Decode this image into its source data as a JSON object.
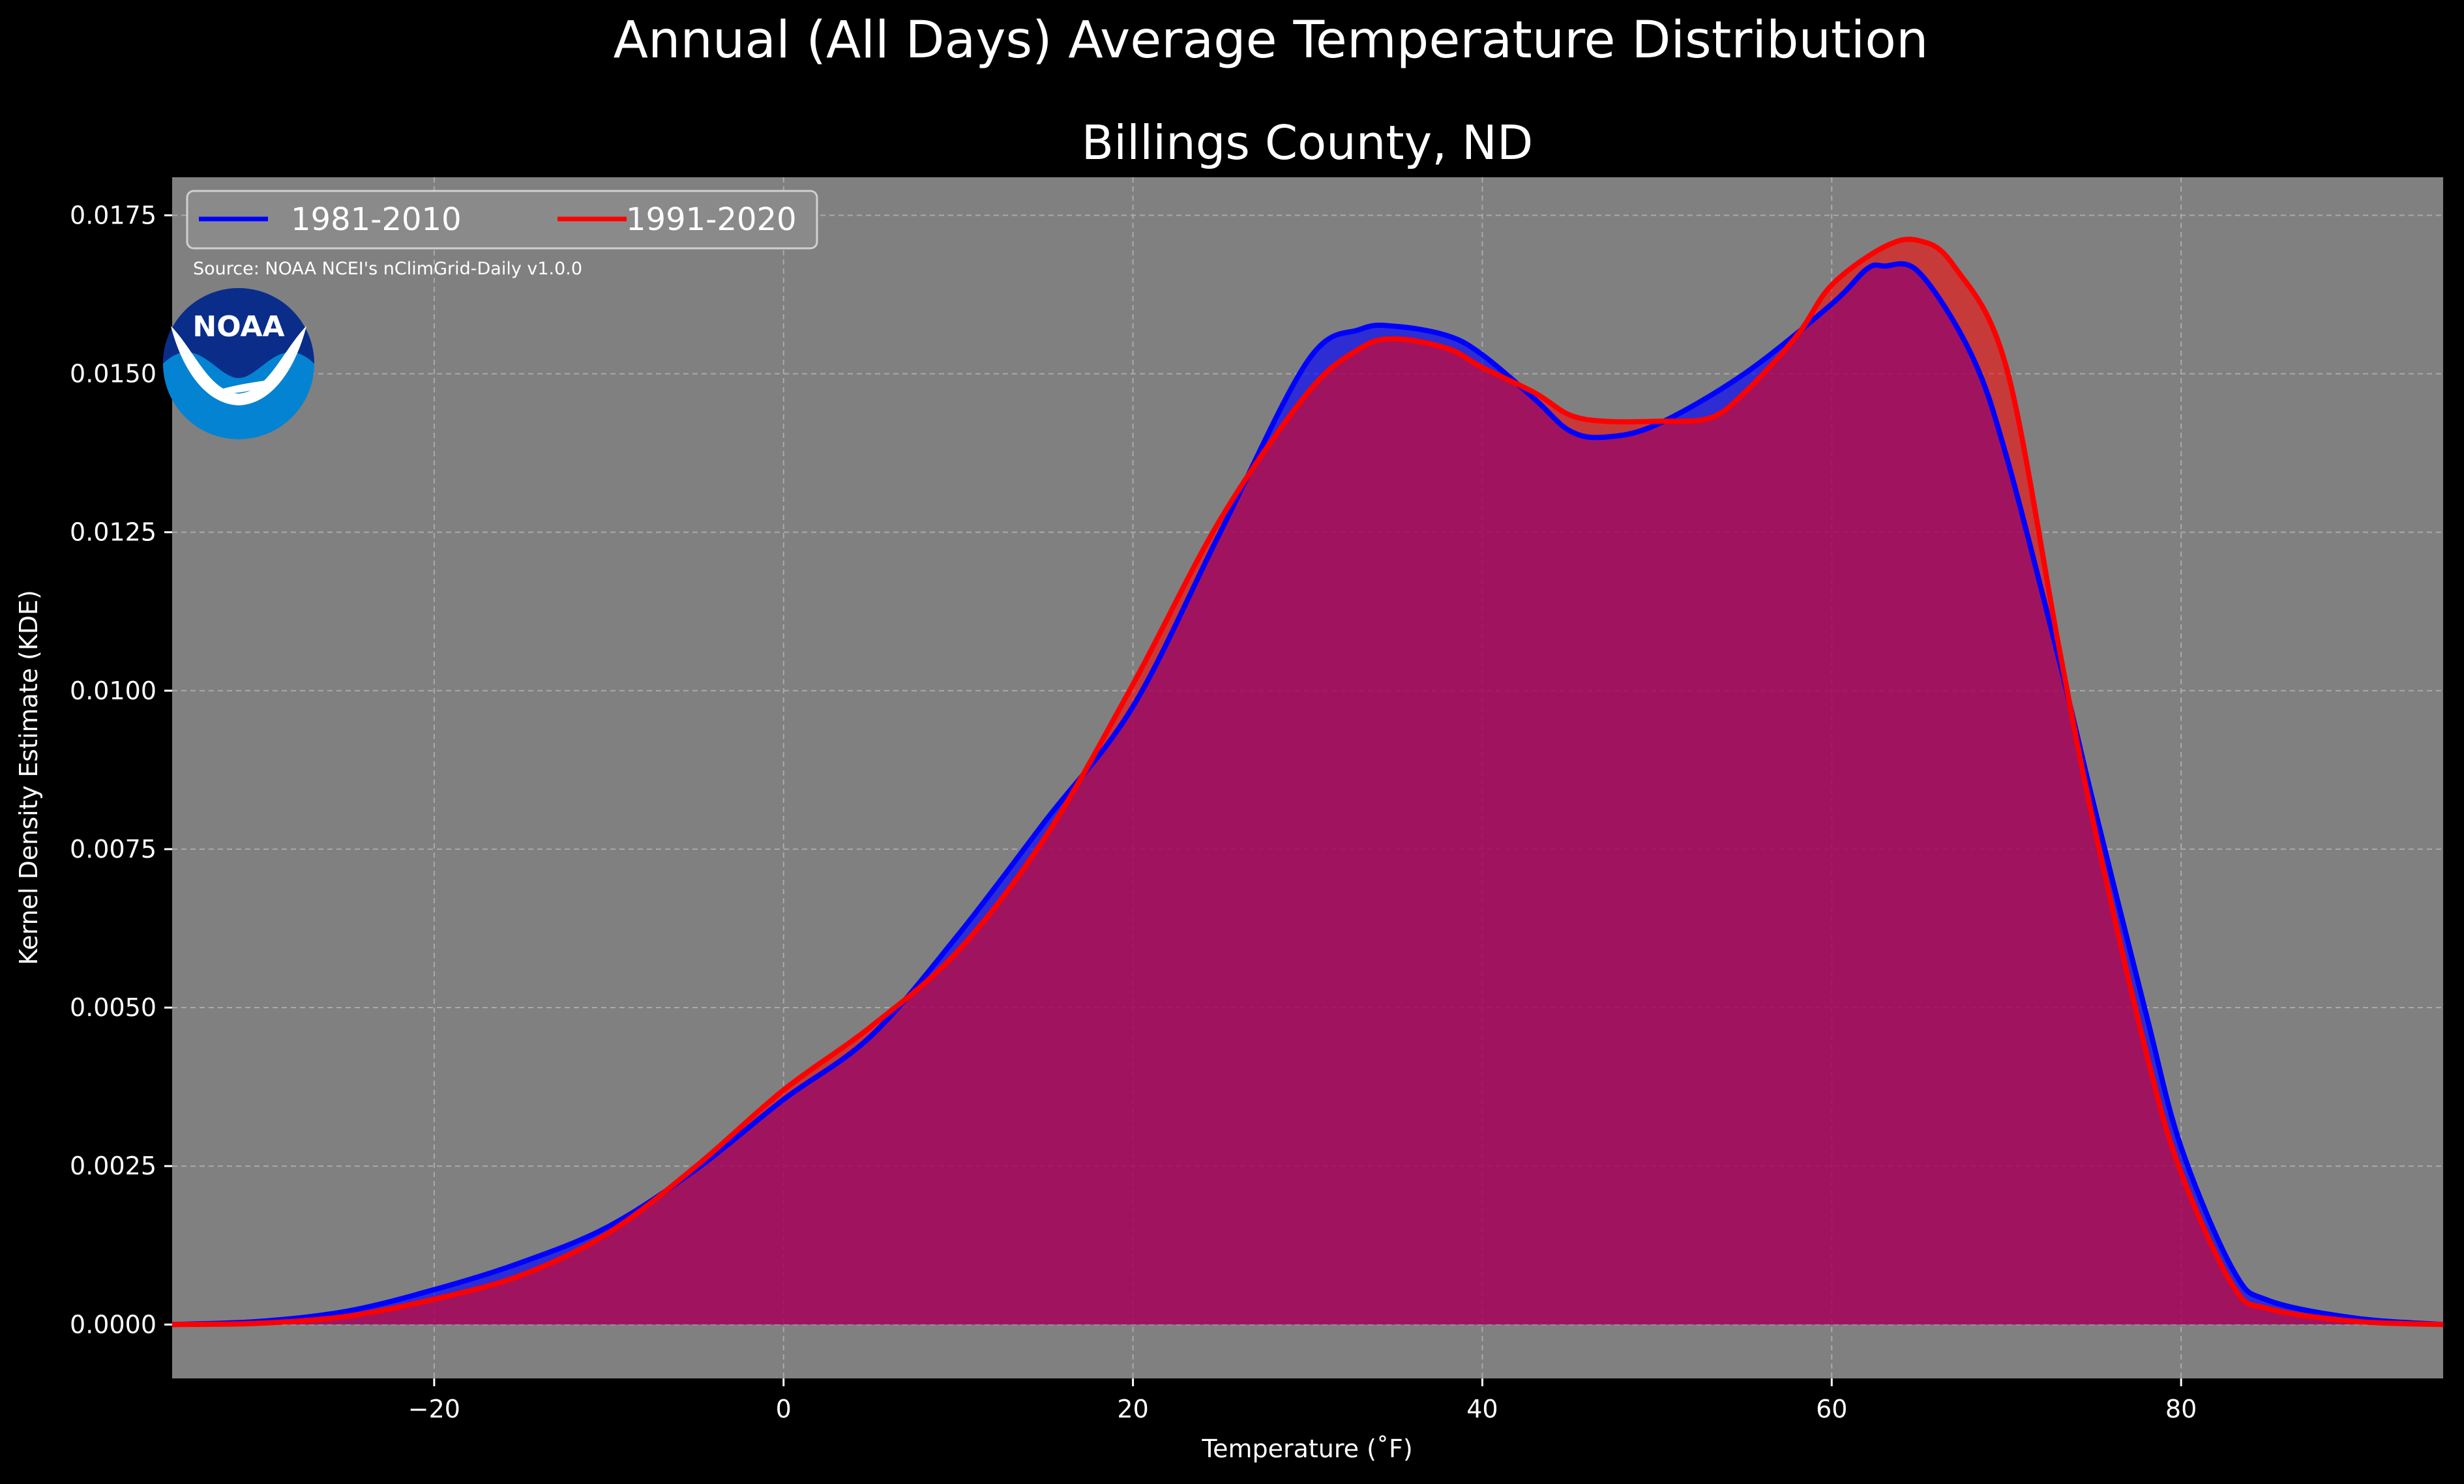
{
  "title": "Annual (All Days) Average Temperature Distribution",
  "subtitle": "Billings County, ND",
  "source": "Source: NOAA NCEI's nClimGrid-Daily v1.0.0",
  "logo_text": "NOAA",
  "colors": {
    "background": "#000000",
    "plot_background": "#808080",
    "series_1": "#0000ff",
    "series_2": "#ff0000",
    "overlap_fill": "#9e1f5f",
    "logo_dark": "#0a2d8a",
    "logo_light": "#0483d2"
  },
  "chart_data": {
    "type": "area",
    "xlabel": "Temperature ($^\\circ$F)",
    "xlabel_display": "Temperature (˚F)",
    "ylabel": "Kernel Density Estimate (KDE)",
    "xlim": [
      -35,
      95
    ],
    "ylim": [
      -0.00085,
      0.0181
    ],
    "xticks": [
      -20,
      0,
      20,
      40,
      60,
      80
    ],
    "xtick_labels": [
      "−20",
      "0",
      "20",
      "40",
      "60",
      "80"
    ],
    "yticks": [
      0.0,
      0.0025,
      0.005,
      0.0075,
      0.01,
      0.0125,
      0.015,
      0.0175
    ],
    "ytick_labels": [
      "0.0000",
      "0.0025",
      "0.0050",
      "0.0075",
      "0.0100",
      "0.0125",
      "0.0150",
      "0.0175"
    ],
    "grid": true,
    "legend_position": "top-left",
    "series": [
      {
        "name": "1981-2010",
        "color": "#0000ff",
        "x": [
          -35,
          -30,
          -25,
          -20,
          -15,
          -10,
          -5,
          0,
          5,
          10,
          15,
          20,
          25,
          30,
          33,
          35,
          38,
          40,
          43,
          45,
          47,
          50,
          55,
          60,
          62,
          63,
          65,
          68,
          70,
          73,
          75,
          78,
          80,
          83,
          85,
          90,
          95
        ],
        "y": [
          0.0,
          5e-05,
          0.00021,
          0.00055,
          0.00098,
          0.00155,
          0.00245,
          0.00355,
          0.00455,
          0.00615,
          0.00795,
          0.00975,
          0.0125,
          0.0152,
          0.0157,
          0.01575,
          0.0156,
          0.0153,
          0.0146,
          0.0141,
          0.014,
          0.0142,
          0.015,
          0.0161,
          0.01665,
          0.0167,
          0.0166,
          0.0153,
          0.0137,
          0.0105,
          0.0082,
          0.0049,
          0.0028,
          0.00085,
          0.00038,
          0.0001,
          0.0
        ]
      },
      {
        "name": "1991-2020",
        "color": "#ff0000",
        "x": [
          -35,
          -30,
          -25,
          -20,
          -15,
          -10,
          -5,
          0,
          5,
          10,
          15,
          20,
          25,
          30,
          33,
          35,
          38,
          40,
          43,
          45,
          47,
          50,
          53,
          55,
          58,
          60,
          63,
          65,
          67,
          70,
          73,
          75,
          78,
          80,
          83,
          85,
          90,
          95
        ],
        "y": [
          0.0,
          2e-05,
          0.00013,
          0.0004,
          0.00078,
          0.00145,
          0.0025,
          0.0037,
          0.0047,
          0.0059,
          0.0077,
          0.0101,
          0.0127,
          0.0147,
          0.0154,
          0.01555,
          0.0154,
          0.0151,
          0.0147,
          0.01435,
          0.01425,
          0.01425,
          0.0143,
          0.0147,
          0.0156,
          0.0164,
          0.017,
          0.0171,
          0.0167,
          0.0151,
          0.0107,
          0.0079,
          0.0043,
          0.0024,
          0.0006,
          0.00025,
          5e-05,
          0.0
        ]
      }
    ]
  }
}
